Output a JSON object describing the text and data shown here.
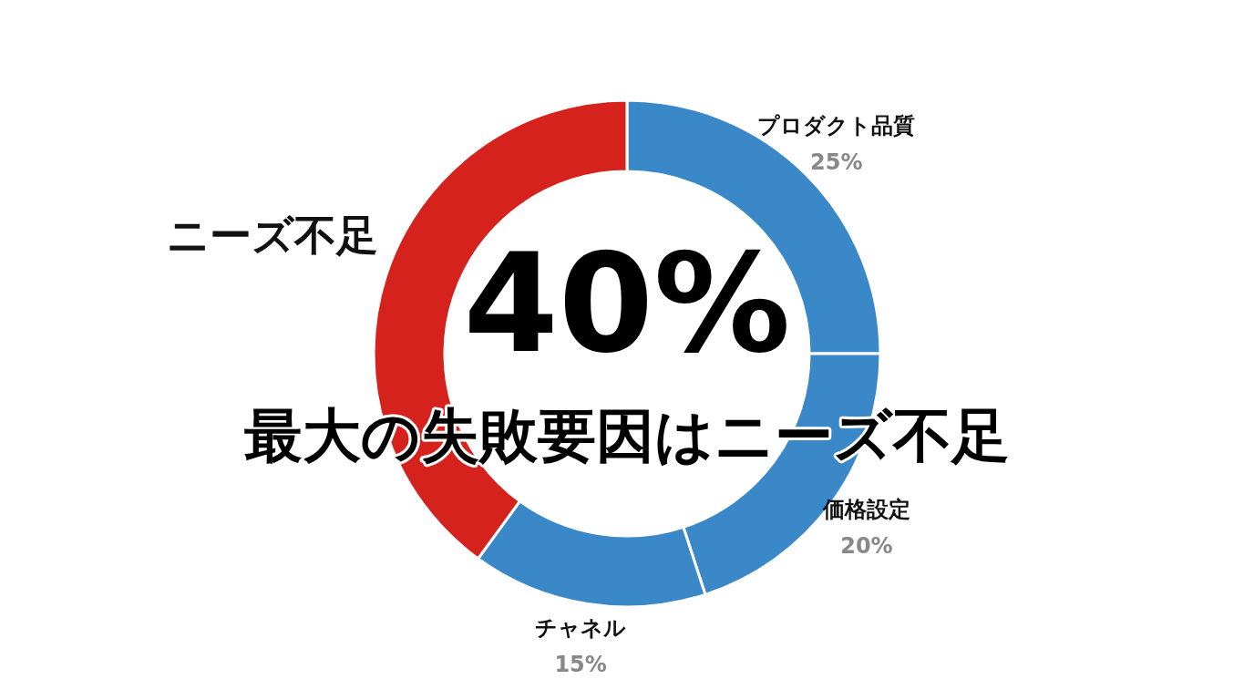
{
  "chart_data": {
    "type": "donut",
    "title": "最大の失敗要因はニーズ不足",
    "annotations": [
      "40%"
    ],
    "categories": [
      "プロダクト品質",
      "価格設定",
      "チャネル",
      "ニーズ不足"
    ],
    "values": [
      25,
      20,
      15,
      40
    ],
    "colors": [
      "#3b88c9",
      "#3b88c9",
      "#3b88c9",
      "#d6221d"
    ],
    "value_labels": [
      "25%",
      "20%",
      "15%",
      null
    ]
  }
}
